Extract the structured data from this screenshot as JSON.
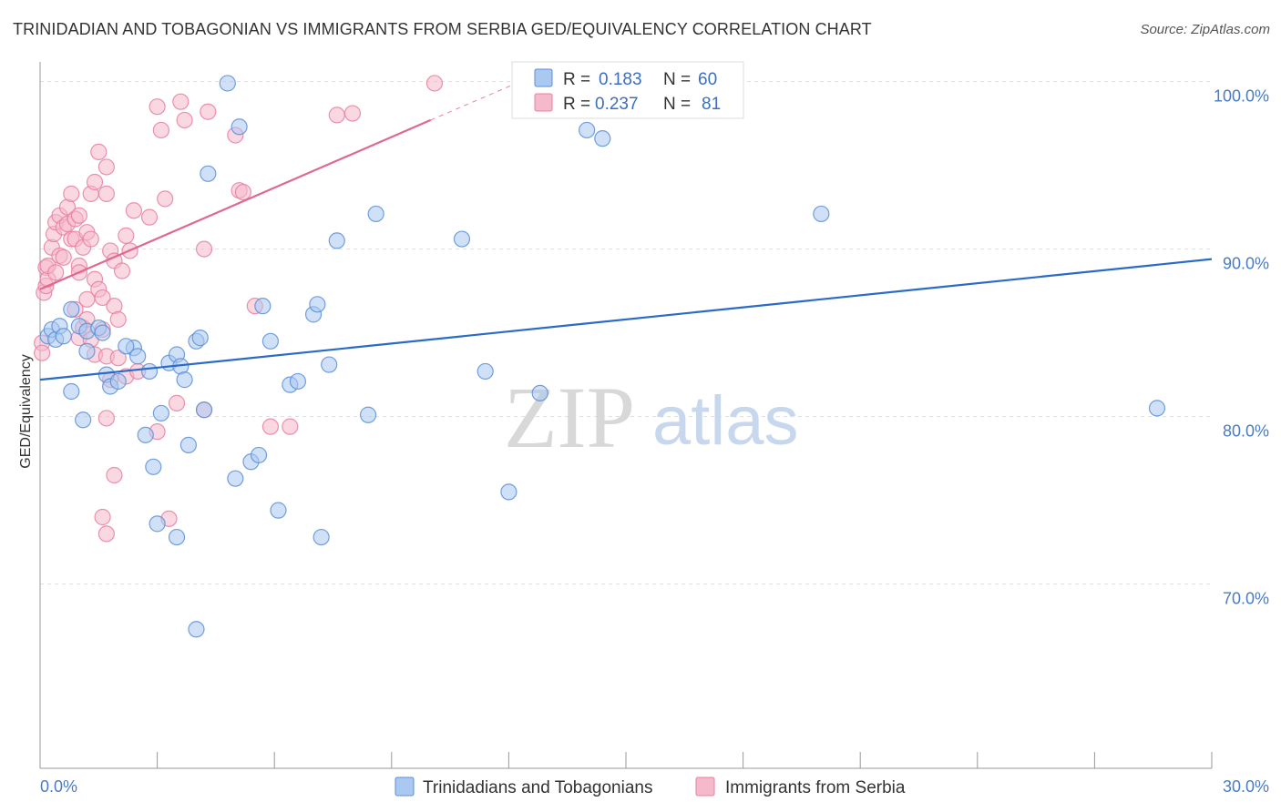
{
  "title": "TRINIDADIAN AND TOBAGONIAN VS IMMIGRANTS FROM SERBIA GED/EQUIVALENCY CORRELATION CHART",
  "source": "Source: ZipAtlas.com",
  "watermark": {
    "zip": "ZIP",
    "atlas": "atlas"
  },
  "colors": {
    "blue_fill": "#aac8f0",
    "blue_stroke": "#5b8fd6",
    "blue_line": "#2a6bc8",
    "pink_fill": "#f6b8cb",
    "pink_stroke": "#e87fa0",
    "pink_line": "#e0688f",
    "grid": "#dddddd",
    "tick_text": "#4a7cc4"
  },
  "chart_data": {
    "type": "scatter",
    "title": "TRINIDADIAN AND TOBAGONIAN VS IMMIGRANTS FROM SERBIA GED/EQUIVALENCY CORRELATION CHART",
    "xlabel": "",
    "ylabel": "GED/Equivalency",
    "xlim": [
      0,
      30
    ],
    "ylim": [
      59,
      101.5
    ],
    "x_tick_labels": [
      "0.0%",
      "30.0%"
    ],
    "y_ticks": [
      70,
      80,
      90,
      100
    ],
    "y_tick_labels": [
      "70.0%",
      "80.0%",
      "90.0%",
      "100.0%"
    ],
    "legend": [
      {
        "series": "Trinidadians and Tobagonians",
        "r_label": "R =",
        "r_value": "0.183",
        "n_label": "N =",
        "n_value": "60"
      },
      {
        "series": "Immigrants from Serbia",
        "r_label": "R =",
        "r_value": "0.237",
        "n_label": "N =",
        "n_value": "81"
      }
    ],
    "series": [
      {
        "name": "Trinidadians and Tobagonians",
        "color": "blue",
        "trend": {
          "x": [
            0,
            30
          ],
          "y": [
            82.2,
            89.4
          ]
        },
        "points": [
          [
            0.2,
            84.8
          ],
          [
            0.3,
            85.2
          ],
          [
            0.4,
            84.6
          ],
          [
            0.5,
            85.4
          ],
          [
            0.6,
            84.8
          ],
          [
            0.8,
            86.4
          ],
          [
            1.0,
            85.4
          ],
          [
            0.8,
            81.5
          ],
          [
            1.1,
            79.8
          ],
          [
            1.2,
            83.9
          ],
          [
            1.2,
            85.1
          ],
          [
            1.5,
            85.3
          ],
          [
            1.7,
            82.5
          ],
          [
            1.8,
            81.8
          ],
          [
            2.0,
            82.1
          ],
          [
            2.4,
            84.1
          ],
          [
            1.6,
            85.0
          ],
          [
            2.2,
            84.2
          ],
          [
            2.5,
            83.6
          ],
          [
            2.8,
            82.7
          ],
          [
            2.7,
            78.9
          ],
          [
            2.9,
            77.0
          ],
          [
            3.0,
            73.6
          ],
          [
            3.1,
            80.2
          ],
          [
            3.3,
            83.2
          ],
          [
            3.5,
            83.7
          ],
          [
            3.6,
            83.0
          ],
          [
            3.7,
            82.2
          ],
          [
            3.8,
            78.3
          ],
          [
            4.0,
            84.5
          ],
          [
            3.5,
            72.8
          ],
          [
            4.1,
            84.7
          ],
          [
            4.2,
            80.4
          ],
          [
            4.3,
            94.5
          ],
          [
            4.0,
            67.3
          ],
          [
            5.0,
            76.3
          ],
          [
            5.4,
            77.3
          ],
          [
            5.6,
            77.7
          ],
          [
            5.7,
            86.6
          ],
          [
            5.9,
            84.5
          ],
          [
            6.1,
            74.4
          ],
          [
            6.4,
            81.9
          ],
          [
            6.6,
            82.1
          ],
          [
            7.0,
            86.1
          ],
          [
            7.1,
            86.7
          ],
          [
            7.4,
            83.1
          ],
          [
            7.2,
            72.8
          ],
          [
            7.6,
            90.5
          ],
          [
            4.8,
            99.9
          ],
          [
            5.1,
            97.3
          ],
          [
            8.4,
            80.1
          ],
          [
            8.6,
            92.1
          ],
          [
            10.8,
            90.6
          ],
          [
            11.4,
            82.7
          ],
          [
            12.0,
            75.5
          ],
          [
            12.8,
            81.4
          ],
          [
            14.0,
            97.1
          ],
          [
            14.4,
            96.6
          ],
          [
            20.0,
            92.1
          ],
          [
            28.6,
            80.5
          ]
        ]
      },
      {
        "name": "Immigrants from Serbia",
        "color": "pink",
        "trend": {
          "x": [
            0,
            10
          ],
          "y": [
            87.6,
            97.7
          ]
        },
        "trend_ext": {
          "x": [
            10,
            12.4
          ],
          "y": [
            97.7,
            100.1
          ]
        },
        "points": [
          [
            0.05,
            84.4
          ],
          [
            0.05,
            83.8
          ],
          [
            0.1,
            87.4
          ],
          [
            0.15,
            87.8
          ],
          [
            0.15,
            88.9
          ],
          [
            0.2,
            88.2
          ],
          [
            0.2,
            89.0
          ],
          [
            0.3,
            90.1
          ],
          [
            0.35,
            90.9
          ],
          [
            0.4,
            91.6
          ],
          [
            0.4,
            88.6
          ],
          [
            0.5,
            89.6
          ],
          [
            0.5,
            92.0
          ],
          [
            0.6,
            91.3
          ],
          [
            0.6,
            89.5
          ],
          [
            0.7,
            91.5
          ],
          [
            0.7,
            92.5
          ],
          [
            0.8,
            90.6
          ],
          [
            0.8,
            93.3
          ],
          [
            0.9,
            91.8
          ],
          [
            0.9,
            90.6
          ],
          [
            1.0,
            92.0
          ],
          [
            1.0,
            89.0
          ],
          [
            1.1,
            90.1
          ],
          [
            1.0,
            88.6
          ],
          [
            1.2,
            87.0
          ],
          [
            1.2,
            91.0
          ],
          [
            1.3,
            90.6
          ],
          [
            1.3,
            93.3
          ],
          [
            1.4,
            94.0
          ],
          [
            1.4,
            88.2
          ],
          [
            1.5,
            87.6
          ],
          [
            1.5,
            95.8
          ],
          [
            1.6,
            87.1
          ],
          [
            1.7,
            93.3
          ],
          [
            1.7,
            94.9
          ],
          [
            1.8,
            89.9
          ],
          [
            1.9,
            89.3
          ],
          [
            1.9,
            86.6
          ],
          [
            0.9,
            86.4
          ],
          [
            1.0,
            84.7
          ],
          [
            1.1,
            85.3
          ],
          [
            1.2,
            85.8
          ],
          [
            1.3,
            84.6
          ],
          [
            1.4,
            83.7
          ],
          [
            1.6,
            85.2
          ],
          [
            1.7,
            83.6
          ],
          [
            1.8,
            82.2
          ],
          [
            1.7,
            79.9
          ],
          [
            2.0,
            85.8
          ],
          [
            2.1,
            88.7
          ],
          [
            2.2,
            90.8
          ],
          [
            2.3,
            89.9
          ],
          [
            2.4,
            92.3
          ],
          [
            1.9,
            76.5
          ],
          [
            1.6,
            74.0
          ],
          [
            1.7,
            73.0
          ],
          [
            2.0,
            83.5
          ],
          [
            2.2,
            82.4
          ],
          [
            2.5,
            82.7
          ],
          [
            2.8,
            91.9
          ],
          [
            3.0,
            79.1
          ],
          [
            3.0,
            98.5
          ],
          [
            3.1,
            97.1
          ],
          [
            3.2,
            93.0
          ],
          [
            3.3,
            73.9
          ],
          [
            3.5,
            80.8
          ],
          [
            3.6,
            98.8
          ],
          [
            3.7,
            97.7
          ],
          [
            4.2,
            80.4
          ],
          [
            4.3,
            98.2
          ],
          [
            4.2,
            90.0
          ],
          [
            5.0,
            96.8
          ],
          [
            5.1,
            93.5
          ],
          [
            5.2,
            93.4
          ],
          [
            5.5,
            86.6
          ],
          [
            5.9,
            79.4
          ],
          [
            6.4,
            79.4
          ],
          [
            7.6,
            98.0
          ],
          [
            8.0,
            98.1
          ],
          [
            10.1,
            99.9
          ]
        ]
      }
    ]
  }
}
